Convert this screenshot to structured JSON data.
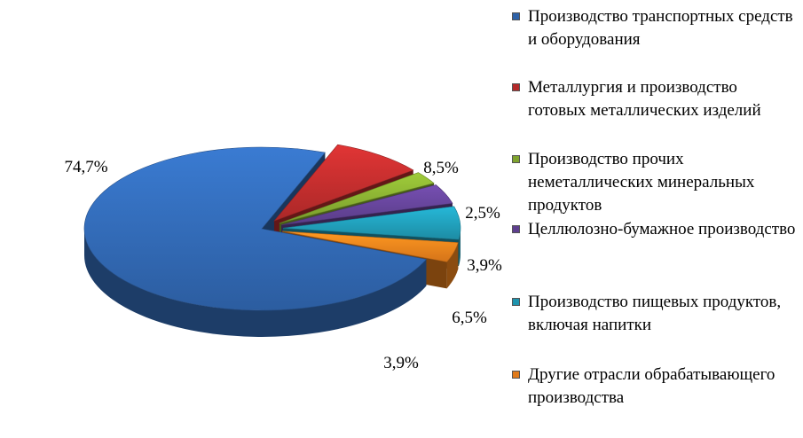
{
  "chart_data": {
    "type": "pie",
    "title": "",
    "categories": [
      "Производство транспортных средств и оборудования",
      "Металлургия и производство готовых металлических изделий",
      "Производство прочих неметаллических минеральных продуктов",
      "Целлюлозно-бумажное производство",
      "Производство пищевых продуктов, включая напитки",
      "Другие отрасли обрабатывающего производства"
    ],
    "values": [
      74.7,
      8.5,
      2.5,
      3.9,
      6.5,
      3.9
    ],
    "value_labels": [
      "74,7%",
      "8,5%",
      "2,5%",
      "3,9%",
      "6,5%",
      "3,9%"
    ],
    "colors": [
      "#2E62A8",
      "#B42A2A",
      "#7FA32E",
      "#5E3F8E",
      "#1E93AD",
      "#E07A1A"
    ],
    "exploded": true,
    "three_d": true,
    "legend_position": "right"
  }
}
